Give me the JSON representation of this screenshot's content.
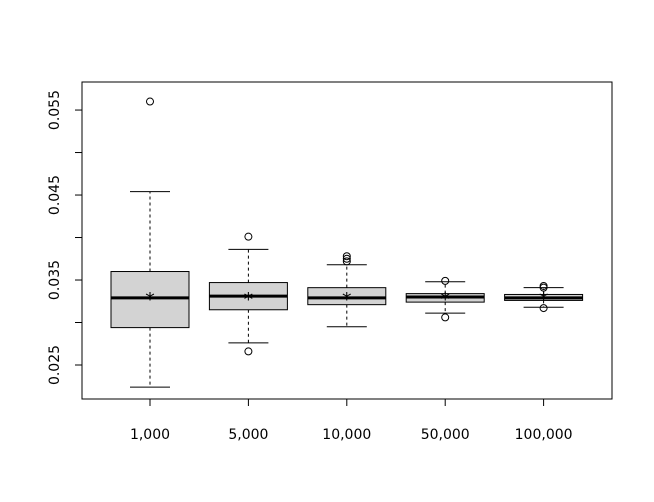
{
  "chart_data": {
    "type": "boxplot",
    "title": "",
    "xlabel": "",
    "ylabel": "",
    "ylim": [
      0.021,
      0.0583
    ],
    "grid": false,
    "y_ticks": [
      0.025,
      0.03,
      0.035,
      0.04,
      0.045,
      0.05,
      0.055
    ],
    "y_tick_labels": [
      "0.025",
      "",
      "0.035",
      "",
      "0.045",
      "",
      "0.055"
    ],
    "categories": [
      "1,000",
      "5,000",
      "10,000",
      "50,000",
      "100,000"
    ],
    "mean_marker": "*",
    "box_fill": "#d3d3d3",
    "stroke_color": "#000000",
    "boxes": [
      {
        "whisker_low": 0.0224,
        "q1": 0.0294,
        "median": 0.0329,
        "q3": 0.036,
        "whisker_high": 0.0454,
        "mean": 0.033,
        "outliers": [
          0.056
        ]
      },
      {
        "whisker_low": 0.0276,
        "q1": 0.0315,
        "median": 0.0331,
        "q3": 0.0347,
        "whisker_high": 0.0386,
        "mean": 0.033,
        "outliers": [
          0.0401,
          0.0266
        ]
      },
      {
        "whisker_low": 0.0295,
        "q1": 0.0321,
        "median": 0.0329,
        "q3": 0.0341,
        "whisker_high": 0.0368,
        "mean": 0.033,
        "outliers": [
          0.0378,
          0.0375,
          0.0372
        ]
      },
      {
        "whisker_low": 0.0311,
        "q1": 0.0324,
        "median": 0.033,
        "q3": 0.0334,
        "whisker_high": 0.0348,
        "mean": 0.033,
        "outliers": [
          0.0349,
          0.0306
        ]
      },
      {
        "whisker_low": 0.0318,
        "q1": 0.0326,
        "median": 0.0329,
        "q3": 0.0333,
        "whisker_high": 0.0341,
        "mean": 0.033,
        "outliers": [
          0.0343,
          0.0341,
          0.0317
        ]
      }
    ]
  }
}
